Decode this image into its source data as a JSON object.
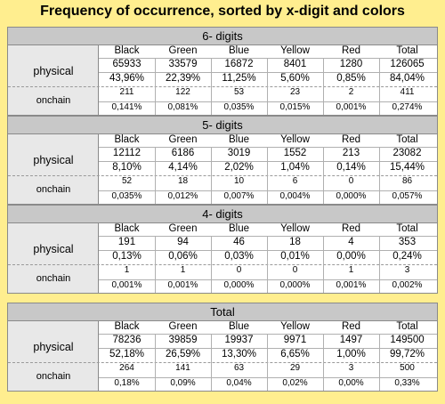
{
  "title": "Frequency of occurrence, sorted by x-digit and colors",
  "columns": [
    "Black",
    "Green",
    "Blue",
    "Yellow",
    "Red",
    "Total"
  ],
  "row_labels": {
    "physical": "physical",
    "onchain": "onchain"
  },
  "blocks": [
    {
      "heading": "6- digits",
      "physical_counts": [
        "65933",
        "33579",
        "16872",
        "8401",
        "1280",
        "126065"
      ],
      "physical_pct": [
        "43,96%",
        "22,39%",
        "11,25%",
        "5,60%",
        "0,85%",
        "84,04%"
      ],
      "onchain_counts": [
        "211",
        "122",
        "53",
        "23",
        "2",
        "411"
      ],
      "onchain_pct": [
        "0,141%",
        "0,081%",
        "0,035%",
        "0,015%",
        "0,001%",
        "0,274%"
      ]
    },
    {
      "heading": "5- digits",
      "physical_counts": [
        "12112",
        "6186",
        "3019",
        "1552",
        "213",
        "23082"
      ],
      "physical_pct": [
        "8,10%",
        "4,14%",
        "2,02%",
        "1,04%",
        "0,14%",
        "15,44%"
      ],
      "onchain_counts": [
        "52",
        "18",
        "10",
        "6",
        "0",
        "86"
      ],
      "onchain_pct": [
        "0,035%",
        "0,012%",
        "0,007%",
        "0,004%",
        "0,000%",
        "0,057%"
      ]
    },
    {
      "heading": "4- digits",
      "physical_counts": [
        "191",
        "94",
        "46",
        "18",
        "4",
        "353"
      ],
      "physical_pct": [
        "0,13%",
        "0,06%",
        "0,03%",
        "0,01%",
        "0,00%",
        "0,24%"
      ],
      "onchain_counts": [
        "1",
        "1",
        "0",
        "0",
        "1",
        "3"
      ],
      "onchain_pct": [
        "0,001%",
        "0,001%",
        "0,000%",
        "0,000%",
        "0,001%",
        "0,002%"
      ]
    },
    {
      "heading": "Total",
      "physical_counts": [
        "78236",
        "39859",
        "19937",
        "9971",
        "1497",
        "149500"
      ],
      "physical_pct": [
        "52,18%",
        "26,59%",
        "13,30%",
        "6,65%",
        "1,00%",
        "99,72%"
      ],
      "onchain_counts": [
        "264",
        "141",
        "63",
        "29",
        "3",
        "500"
      ],
      "onchain_pct": [
        "0,18%",
        "0,09%",
        "0,04%",
        "0,02%",
        "0,00%",
        "0,33%"
      ]
    }
  ],
  "colors": {
    "background": "#FFEE8F",
    "header": "#c8c8c8",
    "label_column": "#e8e8e8"
  }
}
